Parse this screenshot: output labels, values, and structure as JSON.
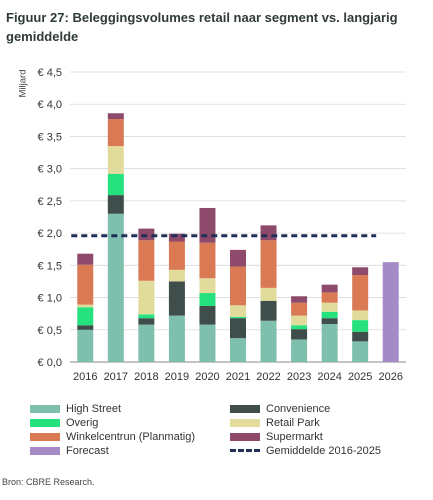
{
  "title": "Figuur 27: Beleggingsvolumes retail naar segment vs. langjarig gemiddelde",
  "source": "Bron: CBRE Research.",
  "chart_data": {
    "type": "bar",
    "stacked": true,
    "ylabel": "Miljard",
    "ylim": [
      0,
      4.5
    ],
    "yticks": [
      "€ 0,0",
      "€ 0,5",
      "€ 1,0",
      "€ 1,5",
      "€ 2,0",
      "€ 2,5",
      "€ 3,0",
      "€ 3,5",
      "€ 4,0",
      "€ 4,5"
    ],
    "grid": true,
    "legend_position": "bottom",
    "categories": [
      "2016",
      "2017",
      "2018",
      "2019",
      "2020",
      "2021",
      "2022",
      "2023",
      "2024",
      "2025",
      "2026"
    ],
    "series": [
      {
        "name": "High Street",
        "color": "#7fbfad",
        "values": [
          0.5,
          2.3,
          0.58,
          0.72,
          0.58,
          0.37,
          0.64,
          0.35,
          0.59,
          0.32,
          0
        ]
      },
      {
        "name": "Convenience",
        "color": "#3f4e4a",
        "values": [
          0.07,
          0.29,
          0.1,
          0.53,
          0.29,
          0.31,
          0.31,
          0.16,
          0.09,
          0.15,
          0
        ]
      },
      {
        "name": "Overig",
        "color": "#25e27f",
        "values": [
          0.28,
          0.33,
          0.06,
          0.0,
          0.2,
          0.02,
          0.0,
          0.06,
          0.1,
          0.18,
          0
        ]
      },
      {
        "name": "Retail Park",
        "color": "#e2dc9c",
        "values": [
          0.04,
          0.43,
          0.52,
          0.18,
          0.23,
          0.18,
          0.2,
          0.15,
          0.14,
          0.15,
          0
        ]
      },
      {
        "name": "Winkelcentrun (Planmatig)",
        "color": "#da7a55",
        "values": [
          0.62,
          0.42,
          0.63,
          0.44,
          0.55,
          0.6,
          0.74,
          0.2,
          0.16,
          0.55,
          0
        ]
      },
      {
        "name": "Supermarkt",
        "color": "#8d4a6a",
        "values": [
          0.17,
          0.09,
          0.18,
          0.12,
          0.54,
          0.26,
          0.23,
          0.1,
          0.12,
          0.12,
          0
        ]
      },
      {
        "name": "Forecast",
        "color": "#a48bc6",
        "values": [
          0,
          0,
          0,
          0,
          0,
          0,
          0,
          0,
          0,
          0,
          1.55
        ]
      }
    ],
    "reference_line": {
      "name": "Gemiddelde 2016-2025",
      "value": 1.96,
      "color": "#1f2f57",
      "style": "dashed"
    }
  }
}
